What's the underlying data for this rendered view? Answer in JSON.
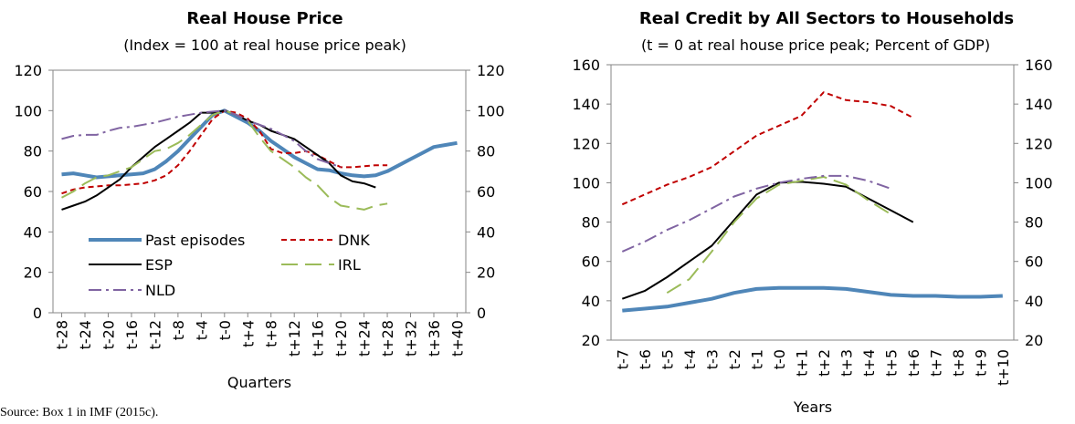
{
  "source": "Source: Box 1 in IMF (2015c).",
  "chart_data": [
    {
      "type": "line",
      "title": "Real House Price",
      "subtitle": "(Index = 100 at real house price peak)",
      "xlabel": "Quarters",
      "x": [
        -28,
        -26,
        -24,
        -22,
        -20,
        -18,
        -16,
        -14,
        -12,
        -10,
        -8,
        -6,
        -4,
        -2,
        0,
        2,
        4,
        6,
        8,
        10,
        12,
        14,
        16,
        18,
        20,
        22,
        24,
        26,
        28,
        30,
        32,
        34,
        36,
        38,
        40
      ],
      "xlim": [
        -29.5,
        41.5
      ],
      "xticks": [
        {
          "value": -28,
          "label": "t-28"
        },
        {
          "value": -24,
          "label": "t-24"
        },
        {
          "value": -20,
          "label": "t-20"
        },
        {
          "value": -16,
          "label": "t-16"
        },
        {
          "value": -12,
          "label": "t-12"
        },
        {
          "value": -8,
          "label": "t-8"
        },
        {
          "value": -4,
          "label": "t-4"
        },
        {
          "value": 0,
          "label": "t-0"
        },
        {
          "value": 4,
          "label": "t+4"
        },
        {
          "value": 8,
          "label": "t+8"
        },
        {
          "value": 12,
          "label": "t+12"
        },
        {
          "value": 16,
          "label": "t+16"
        },
        {
          "value": 20,
          "label": "t+20"
        },
        {
          "value": 24,
          "label": "t+24"
        },
        {
          "value": 28,
          "label": "t+28"
        },
        {
          "value": 32,
          "label": "t+32"
        },
        {
          "value": 36,
          "label": "t+36"
        },
        {
          "value": 40,
          "label": "t+40"
        }
      ],
      "ylim": [
        0,
        120
      ],
      "yticks": [
        0,
        20,
        40,
        60,
        80,
        100,
        120
      ],
      "y2lim": [
        0,
        120
      ],
      "y2ticks": [
        0,
        20,
        40,
        60,
        80,
        100,
        120
      ],
      "legend": "lower left",
      "series": [
        {
          "name": "Past episodes",
          "color": "#4f86b8",
          "linestyle": "solid",
          "width": 4,
          "values": [
            68.5,
            69,
            68,
            67,
            67.5,
            68,
            68.5,
            69,
            71,
            75,
            80,
            86,
            92,
            98,
            100,
            97,
            94,
            90,
            85,
            81,
            77,
            74,
            71,
            70.5,
            69,
            68,
            67.5,
            68,
            70,
            73,
            76,
            79,
            82,
            83,
            84
          ]
        },
        {
          "name": "DNK",
          "color": "#c00000",
          "linestyle": "dashed",
          "width": 2,
          "values": [
            59,
            61,
            62,
            62.5,
            63,
            63,
            63.5,
            64,
            65.5,
            68,
            73,
            80,
            88,
            96,
            100,
            99,
            96,
            90,
            81,
            79,
            79,
            80,
            78,
            75,
            72,
            72,
            72.5,
            73,
            73,
            null,
            null,
            null,
            null,
            null,
            null
          ]
        },
        {
          "name": "ESP",
          "color": "#000000",
          "linestyle": "solid",
          "width": 2,
          "values": [
            51,
            53,
            55,
            58,
            62,
            66,
            72,
            77,
            82,
            86,
            90,
            94,
            99,
            99,
            100,
            98,
            95,
            93,
            90,
            88,
            86,
            82,
            78,
            74,
            68,
            65,
            64,
            62,
            null,
            null,
            null,
            null,
            null,
            null,
            null
          ]
        },
        {
          "name": "IRL",
          "color": "#9bbb59",
          "linestyle": "longdash",
          "width": 2,
          "values": [
            57,
            60,
            64,
            67,
            68,
            70,
            72,
            76,
            80,
            81,
            84,
            88,
            93,
            98,
            100,
            98,
            95,
            87,
            80,
            76,
            72,
            67,
            63,
            57,
            53,
            52,
            51,
            53,
            54,
            null,
            null,
            null,
            null,
            null,
            null
          ]
        },
        {
          "name": "NLD",
          "color": "#8064a2",
          "linestyle": "dashdot",
          "width": 2,
          "values": [
            86,
            87.5,
            88,
            88,
            90,
            91.5,
            92,
            93,
            94,
            95.5,
            97,
            98,
            99,
            99.5,
            100,
            98,
            95,
            93,
            91,
            88,
            85,
            80,
            76,
            74,
            72,
            null,
            null,
            null,
            null,
            null,
            null,
            null,
            null,
            null,
            null
          ]
        }
      ]
    },
    {
      "type": "line",
      "title": "Real Credit by All Sectors to Households",
      "subtitle": "(t = 0 at real house price peak; Percent of GDP)",
      "xlabel": "Years",
      "categories": [
        "t-7",
        "t-6",
        "t-5",
        "t-4",
        "t-3",
        "t-2",
        "t-1",
        "t-0",
        "t+1",
        "t+2",
        "t+3",
        "t+4",
        "t+5",
        "t+6",
        "t+7",
        "t+8",
        "t+9",
        "t+10"
      ],
      "ylim": [
        20,
        160
      ],
      "yticks": [
        20,
        40,
        60,
        80,
        100,
        120,
        140,
        160
      ],
      "y2lim": [
        20,
        160
      ],
      "y2ticks": [
        20,
        40,
        60,
        80,
        100,
        120,
        140,
        160
      ],
      "series": [
        {
          "name": "Past episodes",
          "color": "#4f86b8",
          "linestyle": "solid",
          "width": 4,
          "values": [
            35,
            36,
            37,
            39,
            41,
            44,
            46,
            46.5,
            46.5,
            46.5,
            46,
            44.5,
            43,
            42.5,
            42.5,
            42,
            42,
            42.5
          ]
        },
        {
          "name": "DNK",
          "color": "#c00000",
          "linestyle": "dashed",
          "width": 2,
          "values": [
            89,
            94,
            99,
            103,
            108,
            116,
            124,
            129,
            134,
            146,
            142,
            141,
            139,
            133,
            null,
            null,
            null,
            null
          ]
        },
        {
          "name": "ESP",
          "color": "#000000",
          "linestyle": "solid",
          "width": 2,
          "values": [
            41,
            45,
            52,
            60,
            68,
            81,
            94,
            100,
            100.5,
            99.5,
            98,
            92,
            86,
            80,
            null,
            null,
            null,
            null
          ]
        },
        {
          "name": "IRL",
          "color": "#9bbb59",
          "linestyle": "longdash",
          "width": 2,
          "values": [
            null,
            null,
            44,
            51,
            65,
            80,
            92,
            99,
            101,
            103,
            99,
            91,
            84,
            null,
            null,
            null,
            null,
            null
          ]
        },
        {
          "name": "NLD",
          "color": "#8064a2",
          "linestyle": "dashdot",
          "width": 2,
          "values": [
            65,
            70,
            76,
            81,
            87,
            93,
            97,
            100,
            102,
            103.5,
            103.5,
            101,
            97,
            null,
            null,
            null,
            null,
            null
          ]
        }
      ]
    }
  ]
}
